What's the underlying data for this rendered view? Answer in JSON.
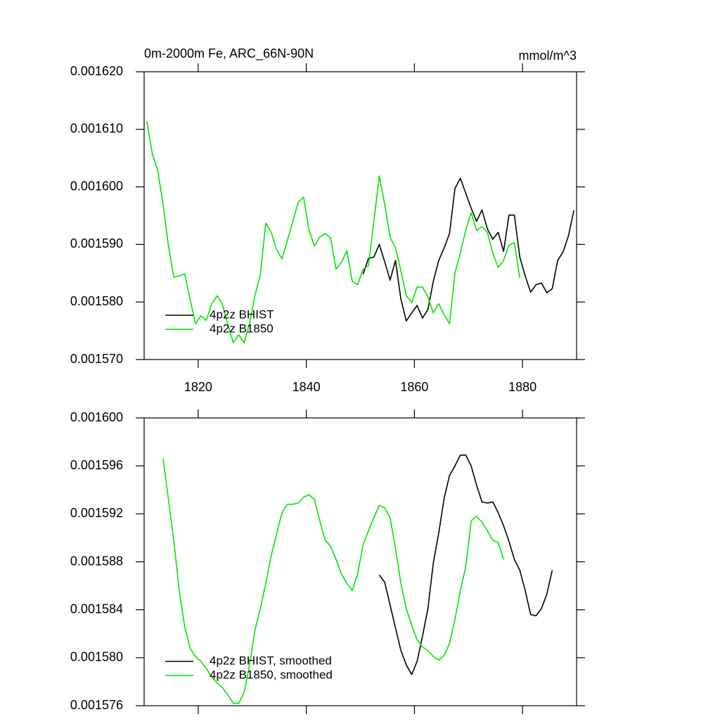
{
  "chart_data": [
    {
      "type": "line",
      "title": "0m-2000m Fe, ARC_66N-90N",
      "units_label": "mmol/m^3",
      "xlim": [
        1810,
        1890
      ],
      "xticks": [
        1820,
        1840,
        1860,
        1880
      ],
      "ylim": [
        0.00157,
        0.00162
      ],
      "yticks": [
        {
          "value": 0.00157,
          "label": "0.001570"
        },
        {
          "value": 0.00158,
          "label": "0.001580"
        },
        {
          "value": 0.00159,
          "label": "0.001590"
        },
        {
          "value": 0.0016,
          "label": "0.001600"
        },
        {
          "value": 0.00161,
          "label": "0.001610"
        },
        {
          "value": 0.00162,
          "label": "0.001620"
        }
      ],
      "legend": "lower left",
      "series": [
        {
          "name": "4p2z BHIST",
          "color": "#000000",
          "x": [
            1850.5,
            1851.5,
            1852.5,
            1853.5,
            1854.5,
            1855.5,
            1856.5,
            1857.5,
            1858.5,
            1859.5,
            1860.5,
            1861.5,
            1862.5,
            1863.5,
            1864.5,
            1865.5,
            1866.5,
            1867.5,
            1868.5,
            1869.5,
            1870.5,
            1871.5,
            1872.5,
            1873.5,
            1874.5,
            1875.5,
            1876.5,
            1877.5,
            1878.5,
            1879.5,
            1880.5,
            1881.5,
            1882.5,
            1883.5,
            1884.5,
            1885.5,
            1886.5,
            1887.5,
            1888.5,
            1889.5
          ],
          "values": [
            0.0015848,
            0.0015876,
            0.0015878,
            0.00159,
            0.001587,
            0.0015838,
            0.0015872,
            0.0015805,
            0.0015767,
            0.0015781,
            0.0015794,
            0.0015772,
            0.0015787,
            0.0015836,
            0.0015872,
            0.0015894,
            0.0015919,
            0.0015997,
            0.0016015,
            0.0015989,
            0.0015963,
            0.001594,
            0.001596,
            0.0015927,
            0.0015909,
            0.0015921,
            0.0015888,
            0.0015951,
            0.0015951,
            0.0015878,
            0.0015845,
            0.0015817,
            0.001583,
            0.0015833,
            0.0015816,
            0.0015823,
            0.0015872,
            0.0015887,
            0.0015915,
            0.0015959
          ]
        },
        {
          "name": "4p2z B1850",
          "color": "#00e600",
          "x": [
            1810.5,
            1811.5,
            1812.5,
            1813.5,
            1814.5,
            1815.5,
            1816.5,
            1817.5,
            1818.5,
            1819.5,
            1820.5,
            1821.5,
            1822.5,
            1823.5,
            1824.5,
            1825.5,
            1826.5,
            1827.5,
            1828.5,
            1829.5,
            1830.5,
            1831.5,
            1832.5,
            1833.5,
            1834.5,
            1835.5,
            1836.5,
            1837.5,
            1838.5,
            1839.5,
            1840.5,
            1841.5,
            1842.5,
            1843.5,
            1844.5,
            1845.5,
            1846.5,
            1847.5,
            1848.5,
            1849.5,
            1850.5,
            1851.5,
            1852.5,
            1853.5,
            1854.5,
            1855.5,
            1856.5,
            1857.5,
            1858.5,
            1859.5,
            1860.5,
            1861.5,
            1862.5,
            1863.5,
            1864.5,
            1865.5,
            1866.5,
            1867.5,
            1868.5,
            1869.5,
            1870.5,
            1871.5,
            1872.5,
            1873.5,
            1874.5,
            1875.5,
            1876.5,
            1877.5,
            1878.5,
            1879.5
          ],
          "values": [
            0.0016114,
            0.0016058,
            0.0016029,
            0.001597,
            0.0015897,
            0.0015843,
            0.0015845,
            0.0015849,
            0.0015805,
            0.0015762,
            0.0015776,
            0.0015768,
            0.0015797,
            0.0015811,
            0.0015795,
            0.001576,
            0.0015729,
            0.0015743,
            0.0015729,
            0.0015762,
            0.0015811,
            0.0015848,
            0.0015937,
            0.0015921,
            0.0015891,
            0.0015875,
            0.0015907,
            0.001594,
            0.0015973,
            0.0015982,
            0.0015925,
            0.0015897,
            0.0015913,
            0.0015919,
            0.0015911,
            0.0015857,
            0.0015869,
            0.0015889,
            0.0015836,
            0.001583,
            0.0015857,
            0.0015863,
            0.001594,
            0.0016019,
            0.001597,
            0.0015913,
            0.0015894,
            0.0015854,
            0.0015811,
            0.0015799,
            0.0015826,
            0.0015826,
            0.0015809,
            0.0015781,
            0.0015797,
            0.0015778,
            0.0015762,
            0.001585,
            0.0015885,
            0.0015925,
            0.0015955,
            0.0015924,
            0.0015931,
            0.0015921,
            0.0015885,
            0.001586,
            0.0015872,
            0.0015899,
            0.0015903,
            0.0015842
          ]
        }
      ]
    },
    {
      "type": "line",
      "xlim": [
        1810,
        1890
      ],
      "xticks": [
        1820,
        1840,
        1860,
        1880
      ],
      "ylim": [
        0.001576,
        0.0016
      ],
      "yticks": [
        {
          "value": 0.001576,
          "label": "0.001576"
        },
        {
          "value": 0.00158,
          "label": "0.001580"
        },
        {
          "value": 0.001584,
          "label": "0.001584"
        },
        {
          "value": 0.001588,
          "label": "0.001588"
        },
        {
          "value": 0.001592,
          "label": "0.001592"
        },
        {
          "value": 0.001596,
          "label": "0.001596"
        },
        {
          "value": 0.0016,
          "label": "0.001600"
        }
      ],
      "legend": "lower left",
      "series": [
        {
          "name": "4p2z BHIST, smoothed",
          "color": "#000000",
          "x": [
            1853.5,
            1854.5,
            1855.5,
            1856.5,
            1857.5,
            1858.5,
            1859.5,
            1860.5,
            1861.5,
            1862.5,
            1863.5,
            1864.5,
            1865.5,
            1866.5,
            1867.5,
            1868.5,
            1869.5,
            1870.5,
            1871.5,
            1872.5,
            1873.5,
            1874.5,
            1875.5,
            1876.5,
            1877.5,
            1878.5,
            1879.5,
            1880.5,
            1881.5,
            1882.5,
            1883.5,
            1884.5,
            1885.5
          ],
          "values": [
            0.0015869,
            0.0015863,
            0.0015844,
            0.0015825,
            0.0015806,
            0.0015794,
            0.0015786,
            0.0015797,
            0.0015818,
            0.0015841,
            0.0015879,
            0.0015904,
            0.0015933,
            0.0015952,
            0.001596,
            0.0015969,
            0.0015969,
            0.001596,
            0.0015944,
            0.001593,
            0.0015929,
            0.001593,
            0.0015921,
            0.001591,
            0.0015897,
            0.0015882,
            0.0015873,
            0.0015856,
            0.0015836,
            0.0015835,
            0.0015841,
            0.0015853,
            0.0015873
          ]
        },
        {
          "name": "4p2z B1850, smoothed",
          "color": "#00e600",
          "x": [
            1813.5,
            1814.5,
            1815.5,
            1816.5,
            1817.5,
            1818.5,
            1819.5,
            1820.5,
            1821.5,
            1822.5,
            1823.5,
            1824.5,
            1825.5,
            1826.5,
            1827.5,
            1828.5,
            1829.5,
            1830.5,
            1831.5,
            1832.5,
            1833.5,
            1834.5,
            1835.5,
            1836.5,
            1837.5,
            1838.5,
            1839.5,
            1840.5,
            1841.5,
            1842.5,
            1843.5,
            1844.5,
            1845.5,
            1846.5,
            1847.5,
            1848.5,
            1849.5,
            1850.5,
            1851.5,
            1852.5,
            1853.5,
            1854.5,
            1855.5,
            1856.5,
            1857.5,
            1858.5,
            1859.5,
            1860.5,
            1861.5,
            1862.5,
            1863.5,
            1864.5,
            1865.5,
            1866.5,
            1867.5,
            1868.5,
            1869.5,
            1870.5,
            1871.5,
            1872.5,
            1873.5,
            1874.5,
            1875.5,
            1876.5
          ],
          "values": [
            0.0015966,
            0.0015932,
            0.0015897,
            0.0015856,
            0.0015826,
            0.0015808,
            0.0015801,
            0.0015797,
            0.0015791,
            0.0015784,
            0.0015779,
            0.0015775,
            0.0015769,
            0.0015762,
            0.0015762,
            0.0015771,
            0.0015794,
            0.0015823,
            0.0015841,
            0.0015862,
            0.0015885,
            0.0015903,
            0.0015921,
            0.0015928,
            0.0015928,
            0.0015929,
            0.0015934,
            0.0015936,
            0.0015932,
            0.0015914,
            0.0015898,
            0.0015893,
            0.0015882,
            0.001587,
            0.0015862,
            0.0015856,
            0.001587,
            0.0015894,
            0.0015906,
            0.0015917,
            0.0015927,
            0.0015925,
            0.0015917,
            0.0015891,
            0.0015862,
            0.0015841,
            0.0015827,
            0.0015815,
            0.0015809,
            0.0015806,
            0.0015801,
            0.0015798,
            0.0015802,
            0.0015812,
            0.0015832,
            0.0015856,
            0.0015876,
            0.0015914,
            0.0015918,
            0.0015913,
            0.0015906,
            0.0015898,
            0.0015896,
            0.0015882
          ]
        }
      ]
    }
  ]
}
